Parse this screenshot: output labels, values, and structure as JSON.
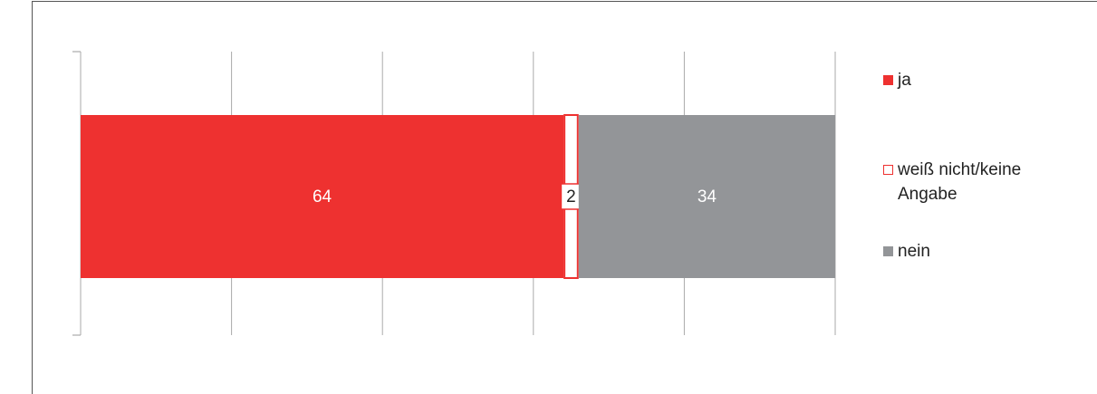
{
  "chart_data": {
    "type": "stacked_barh",
    "series": [
      {
        "name": "ja",
        "color": "#ee3130",
        "values": [
          64
        ]
      },
      {
        "name": "weiß nicht/keine Angabe",
        "color": "#ffffff",
        "edgecolor": "#ee3130",
        "values": [
          2
        ]
      },
      {
        "name": "nein",
        "color": "#939598",
        "values": [
          34
        ]
      }
    ],
    "xlim": [
      0,
      100
    ],
    "xticks": [
      0,
      20,
      40,
      60,
      80,
      100
    ],
    "grid": true,
    "legend": "right"
  }
}
